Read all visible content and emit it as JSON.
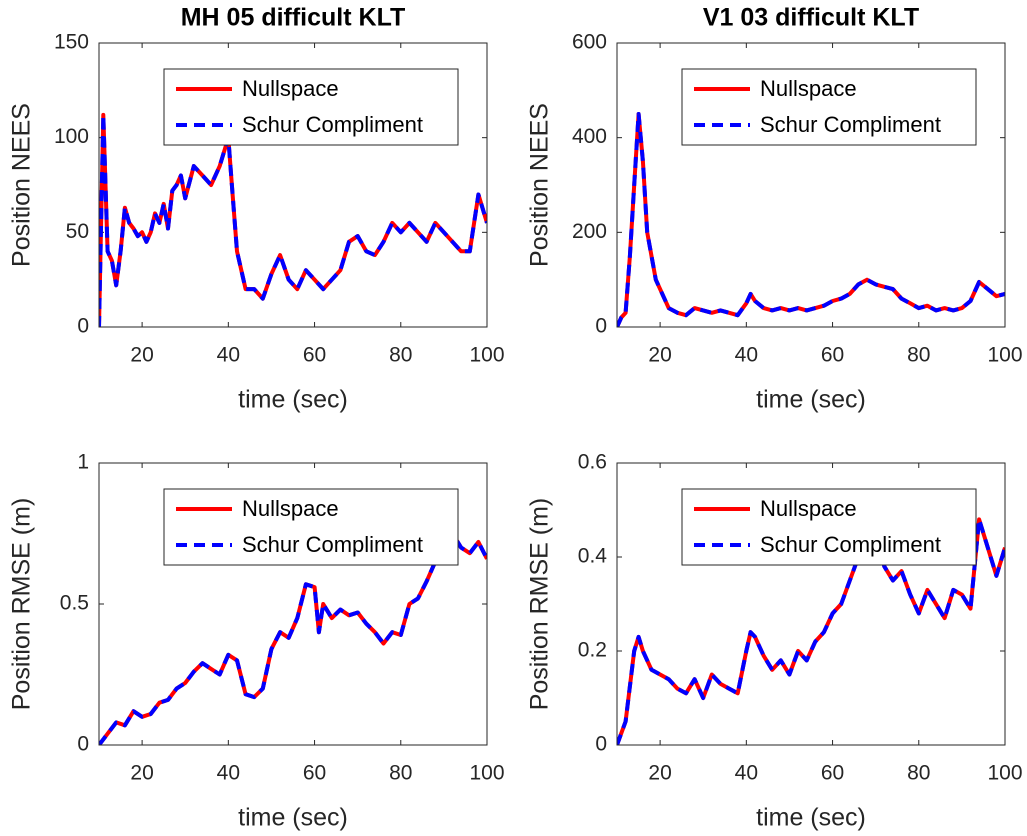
{
  "chart_data": [
    {
      "type": "line",
      "title": "MH 05 difficult KLT",
      "x_label": "time (sec)",
      "y_label": "Position NEES",
      "x": [
        10,
        11,
        12,
        13,
        14,
        15,
        16,
        17,
        18,
        19,
        20,
        21,
        22,
        23,
        24,
        25,
        26,
        27,
        28,
        29,
        30,
        32,
        34,
        36,
        38,
        40,
        41,
        42,
        44,
        46,
        48,
        50,
        52,
        54,
        56,
        58,
        60,
        62,
        64,
        66,
        68,
        70,
        72,
        74,
        76,
        78,
        80,
        82,
        84,
        86,
        88,
        90,
        92,
        94,
        96,
        98,
        100
      ],
      "series": [
        {
          "name": "Nullspace",
          "color": "#ff0000",
          "line_style": "solid",
          "values": [
            0,
            112,
            40,
            35,
            22,
            40,
            63,
            55,
            52,
            48,
            50,
            45,
            50,
            60,
            55,
            65,
            52,
            72,
            75,
            80,
            68,
            85,
            80,
            75,
            85,
            100,
            70,
            40,
            20,
            20,
            15,
            28,
            38,
            25,
            20,
            30,
            25,
            20,
            25,
            30,
            45,
            48,
            40,
            38,
            45,
            55,
            50,
            55,
            50,
            45,
            55,
            50,
            45,
            40,
            40,
            70,
            55
          ]
        },
        {
          "name": "Schur Compliment",
          "color": "#0000ff",
          "line_style": "dashed",
          "values": [
            0,
            112,
            40,
            35,
            22,
            40,
            63,
            55,
            52,
            48,
            50,
            45,
            50,
            60,
            55,
            65,
            52,
            72,
            75,
            80,
            68,
            85,
            80,
            75,
            85,
            100,
            70,
            40,
            20,
            20,
            15,
            28,
            38,
            25,
            20,
            30,
            25,
            20,
            25,
            30,
            45,
            48,
            40,
            38,
            45,
            55,
            50,
            55,
            50,
            45,
            55,
            50,
            45,
            40,
            40,
            70,
            55
          ]
        }
      ],
      "xlim": [
        10,
        100
      ],
      "xticks": [
        20,
        40,
        60,
        80,
        100
      ],
      "ylim": [
        0,
        150
      ],
      "yticks": [
        0,
        50,
        100,
        150
      ],
      "grid": false,
      "legend": "north-east"
    },
    {
      "type": "line",
      "title": "V1 03 difficult KLT",
      "x_label": "time (sec)",
      "y_label": "Position NEES",
      "x": [
        10,
        11,
        12,
        13,
        14,
        15,
        16,
        17,
        18,
        19,
        20,
        21,
        22,
        24,
        26,
        28,
        30,
        32,
        34,
        36,
        38,
        40,
        41,
        42,
        44,
        46,
        48,
        50,
        52,
        54,
        56,
        58,
        60,
        62,
        64,
        66,
        68,
        70,
        72,
        74,
        76,
        78,
        80,
        82,
        84,
        86,
        88,
        90,
        92,
        94,
        96,
        98,
        100
      ],
      "series": [
        {
          "name": "Nullspace",
          "color": "#ff0000",
          "line_style": "solid",
          "values": [
            0,
            20,
            30,
            150,
            300,
            450,
            350,
            200,
            150,
            100,
            80,
            60,
            40,
            30,
            25,
            40,
            35,
            30,
            35,
            30,
            25,
            50,
            70,
            55,
            40,
            35,
            40,
            35,
            40,
            35,
            40,
            45,
            55,
            60,
            70,
            90,
            100,
            90,
            85,
            80,
            60,
            50,
            40,
            45,
            35,
            40,
            35,
            40,
            55,
            95,
            80,
            65,
            70
          ]
        },
        {
          "name": "Schur Compliment",
          "color": "#0000ff",
          "line_style": "dashed",
          "values": [
            0,
            20,
            30,
            150,
            300,
            450,
            350,
            200,
            150,
            100,
            80,
            60,
            40,
            30,
            25,
            40,
            35,
            30,
            35,
            30,
            25,
            50,
            70,
            55,
            40,
            35,
            40,
            35,
            40,
            35,
            40,
            45,
            55,
            60,
            70,
            90,
            100,
            90,
            85,
            80,
            60,
            50,
            40,
            45,
            35,
            40,
            35,
            40,
            55,
            95,
            80,
            65,
            70
          ]
        }
      ],
      "xlim": [
        10,
        100
      ],
      "xticks": [
        20,
        40,
        60,
        80,
        100
      ],
      "ylim": [
        0,
        600
      ],
      "yticks": [
        0,
        200,
        400,
        600
      ],
      "grid": false,
      "legend": "north-east"
    },
    {
      "type": "line",
      "x_label": "time (sec)",
      "y_label": "Position RMSE (m)",
      "x": [
        10,
        12,
        14,
        16,
        18,
        20,
        22,
        24,
        26,
        28,
        30,
        32,
        34,
        36,
        38,
        40,
        42,
        44,
        46,
        48,
        50,
        52,
        54,
        56,
        58,
        60,
        61,
        62,
        64,
        66,
        68,
        70,
        72,
        74,
        76,
        78,
        80,
        82,
        84,
        86,
        88,
        90,
        92,
        94,
        96,
        98,
        100
      ],
      "series": [
        {
          "name": "Nullspace",
          "color": "#ff0000",
          "line_style": "solid",
          "values": [
            0,
            0.04,
            0.08,
            0.07,
            0.12,
            0.1,
            0.11,
            0.15,
            0.16,
            0.2,
            0.22,
            0.26,
            0.29,
            0.27,
            0.25,
            0.32,
            0.3,
            0.18,
            0.17,
            0.2,
            0.34,
            0.4,
            0.38,
            0.45,
            0.57,
            0.56,
            0.4,
            0.5,
            0.45,
            0.48,
            0.46,
            0.47,
            0.43,
            0.4,
            0.36,
            0.4,
            0.39,
            0.5,
            0.52,
            0.58,
            0.65,
            0.7,
            0.75,
            0.7,
            0.68,
            0.72,
            0.66
          ]
        },
        {
          "name": "Schur Compliment",
          "color": "#0000ff",
          "line_style": "dashed",
          "values": [
            0,
            0.04,
            0.08,
            0.07,
            0.12,
            0.1,
            0.11,
            0.15,
            0.16,
            0.2,
            0.22,
            0.26,
            0.29,
            0.27,
            0.25,
            0.32,
            0.3,
            0.18,
            0.17,
            0.2,
            0.34,
            0.4,
            0.38,
            0.45,
            0.57,
            0.56,
            0.4,
            0.5,
            0.45,
            0.48,
            0.46,
            0.47,
            0.43,
            0.4,
            0.36,
            0.4,
            0.39,
            0.5,
            0.52,
            0.58,
            0.65,
            0.7,
            0.75,
            0.7,
            0.68,
            0.72,
            0.66
          ]
        }
      ],
      "xlim": [
        10,
        100
      ],
      "xticks": [
        20,
        40,
        60,
        80,
        100
      ],
      "ylim": [
        0,
        1
      ],
      "yticks": [
        0,
        0.5,
        1
      ],
      "grid": false,
      "legend": "north-east"
    },
    {
      "type": "line",
      "x_label": "time (sec)",
      "y_label": "Position RMSE (m)",
      "x": [
        10,
        12,
        14,
        15,
        16,
        18,
        20,
        22,
        24,
        26,
        28,
        30,
        32,
        34,
        36,
        38,
        40,
        41,
        42,
        44,
        46,
        48,
        50,
        52,
        54,
        56,
        58,
        60,
        62,
        64,
        66,
        68,
        70,
        72,
        74,
        76,
        78,
        80,
        82,
        84,
        86,
        88,
        90,
        92,
        94,
        96,
        98,
        100
      ],
      "series": [
        {
          "name": "Nullspace",
          "color": "#ff0000",
          "line_style": "solid",
          "values": [
            0,
            0.05,
            0.2,
            0.23,
            0.2,
            0.16,
            0.15,
            0.14,
            0.12,
            0.11,
            0.14,
            0.1,
            0.15,
            0.13,
            0.12,
            0.11,
            0.2,
            0.24,
            0.23,
            0.19,
            0.16,
            0.18,
            0.15,
            0.2,
            0.18,
            0.22,
            0.24,
            0.28,
            0.3,
            0.35,
            0.4,
            0.42,
            0.45,
            0.38,
            0.35,
            0.37,
            0.32,
            0.28,
            0.33,
            0.3,
            0.27,
            0.33,
            0.32,
            0.29,
            0.48,
            0.42,
            0.36,
            0.42
          ]
        },
        {
          "name": "Schur Compliment",
          "color": "#0000ff",
          "line_style": "dashed",
          "values": [
            0,
            0.05,
            0.2,
            0.23,
            0.2,
            0.16,
            0.15,
            0.14,
            0.12,
            0.11,
            0.14,
            0.1,
            0.15,
            0.13,
            0.12,
            0.11,
            0.2,
            0.24,
            0.23,
            0.19,
            0.16,
            0.18,
            0.15,
            0.2,
            0.18,
            0.22,
            0.24,
            0.28,
            0.3,
            0.35,
            0.4,
            0.42,
            0.45,
            0.38,
            0.35,
            0.37,
            0.32,
            0.28,
            0.33,
            0.3,
            0.27,
            0.33,
            0.32,
            0.29,
            0.48,
            0.42,
            0.36,
            0.42
          ]
        }
      ],
      "xlim": [
        10,
        100
      ],
      "xticks": [
        20,
        40,
        60,
        80,
        100
      ],
      "ylim": [
        0,
        0.6
      ],
      "yticks": [
        0,
        0.2,
        0.4,
        0.6
      ],
      "grid": false,
      "legend": "north-east"
    }
  ]
}
